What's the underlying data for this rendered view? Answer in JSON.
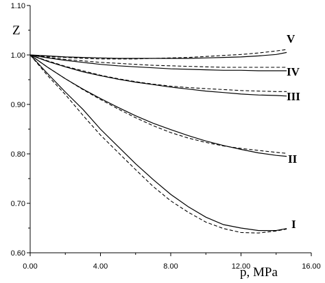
{
  "chart_data": {
    "type": "line",
    "title": "",
    "xlabel": "p, MPa",
    "ylabel": "Z",
    "xlim": [
      0,
      16
    ],
    "ylim": [
      0.6,
      1.1
    ],
    "x_ticks": [
      "0.00",
      "4.00",
      "8.00",
      "12.00",
      "16.00"
    ],
    "y_ticks": [
      "0.60",
      "0.70",
      "0.80",
      "0.90",
      "1.00",
      "1.10"
    ],
    "grid": false,
    "legend": "inline labels at right end of curves",
    "series_style_note": "",
    "series": [
      {
        "name": "I",
        "solid": {
          "x": [
            0,
            1,
            2,
            3,
            4,
            5,
            6,
            7,
            8,
            9,
            10,
            11,
            12,
            13,
            14,
            14.6
          ],
          "y": [
            1.0,
            0.962,
            0.925,
            0.89,
            0.85,
            0.815,
            0.78,
            0.748,
            0.718,
            0.693,
            0.672,
            0.657,
            0.65,
            0.645,
            0.645,
            0.649
          ]
        },
        "dashed": {
          "x": [
            0,
            1,
            2,
            3,
            4,
            5,
            6,
            7,
            8,
            9,
            10,
            11,
            12,
            13,
            14,
            14.6
          ],
          "y": [
            1.0,
            0.958,
            0.92,
            0.878,
            0.838,
            0.803,
            0.768,
            0.734,
            0.705,
            0.682,
            0.662,
            0.649,
            0.641,
            0.64,
            0.644,
            0.648
          ]
        }
      },
      {
        "name": "II",
        "solid": {
          "x": [
            0,
            1,
            2,
            3,
            4,
            5,
            6,
            7,
            8,
            9,
            10,
            11,
            12,
            13,
            14,
            14.6
          ],
          "y": [
            1.0,
            0.975,
            0.952,
            0.931,
            0.912,
            0.894,
            0.877,
            0.862,
            0.849,
            0.837,
            0.826,
            0.817,
            0.809,
            0.802,
            0.797,
            0.795
          ]
        },
        "dashed": {
          "x": [
            0,
            1,
            2,
            3,
            4,
            5,
            6,
            7,
            8,
            9,
            10,
            11,
            12,
            13,
            14,
            14.6
          ],
          "y": [
            1.0,
            0.975,
            0.952,
            0.93,
            0.91,
            0.891,
            0.873,
            0.857,
            0.843,
            0.832,
            0.823,
            0.816,
            0.811,
            0.807,
            0.803,
            0.801
          ]
        }
      },
      {
        "name": "III",
        "solid": {
          "x": [
            0,
            1,
            2,
            3,
            4,
            5,
            6,
            7,
            8,
            9,
            10,
            11,
            12,
            13,
            14,
            14.6
          ],
          "y": [
            1.0,
            0.987,
            0.976,
            0.966,
            0.958,
            0.951,
            0.945,
            0.94,
            0.935,
            0.931,
            0.927,
            0.924,
            0.921,
            0.919,
            0.918,
            0.917
          ]
        },
        "dashed": {
          "x": [
            0,
            1,
            2,
            3,
            4,
            5,
            6,
            7,
            8,
            9,
            10,
            11,
            12,
            13,
            14,
            14.6
          ],
          "y": [
            1.0,
            0.988,
            0.977,
            0.968,
            0.959,
            0.952,
            0.946,
            0.941,
            0.937,
            0.934,
            0.932,
            0.93,
            0.928,
            0.927,
            0.926,
            0.926
          ]
        }
      },
      {
        "name": "IV",
        "solid": {
          "x": [
            0,
            1,
            2,
            3,
            4,
            5,
            6,
            7,
            8,
            9,
            10,
            11,
            12,
            13,
            14,
            14.6
          ],
          "y": [
            1.0,
            0.994,
            0.989,
            0.985,
            0.981,
            0.978,
            0.976,
            0.974,
            0.972,
            0.971,
            0.97,
            0.969,
            0.969,
            0.968,
            0.968,
            0.968
          ]
        },
        "dashed": {
          "x": [
            0,
            1,
            2,
            3,
            4,
            5,
            6,
            7,
            8,
            9,
            10,
            11,
            12,
            13,
            14,
            14.6
          ],
          "y": [
            1.0,
            0.995,
            0.991,
            0.988,
            0.985,
            0.983,
            0.981,
            0.979,
            0.978,
            0.977,
            0.976,
            0.975,
            0.975,
            0.975,
            0.975,
            0.975
          ]
        }
      },
      {
        "name": "V",
        "solid": {
          "x": [
            0,
            1,
            2,
            3,
            4,
            5,
            6,
            7,
            8,
            9,
            10,
            11,
            12,
            13,
            14,
            14.6
          ],
          "y": [
            1.0,
            0.998,
            0.996,
            0.995,
            0.994,
            0.993,
            0.993,
            0.993,
            0.993,
            0.993,
            0.994,
            0.995,
            0.996,
            0.998,
            1.001,
            1.005
          ]
        },
        "dashed": {
          "x": [
            0,
            1,
            2,
            3,
            4,
            5,
            6,
            7,
            8,
            9,
            10,
            11,
            12,
            13,
            14,
            14.6
          ],
          "y": [
            1.0,
            0.997,
            0.995,
            0.993,
            0.992,
            0.992,
            0.992,
            0.993,
            0.994,
            0.995,
            0.997,
            0.999,
            1.001,
            1.004,
            1.008,
            1.011
          ]
        }
      }
    ]
  }
}
